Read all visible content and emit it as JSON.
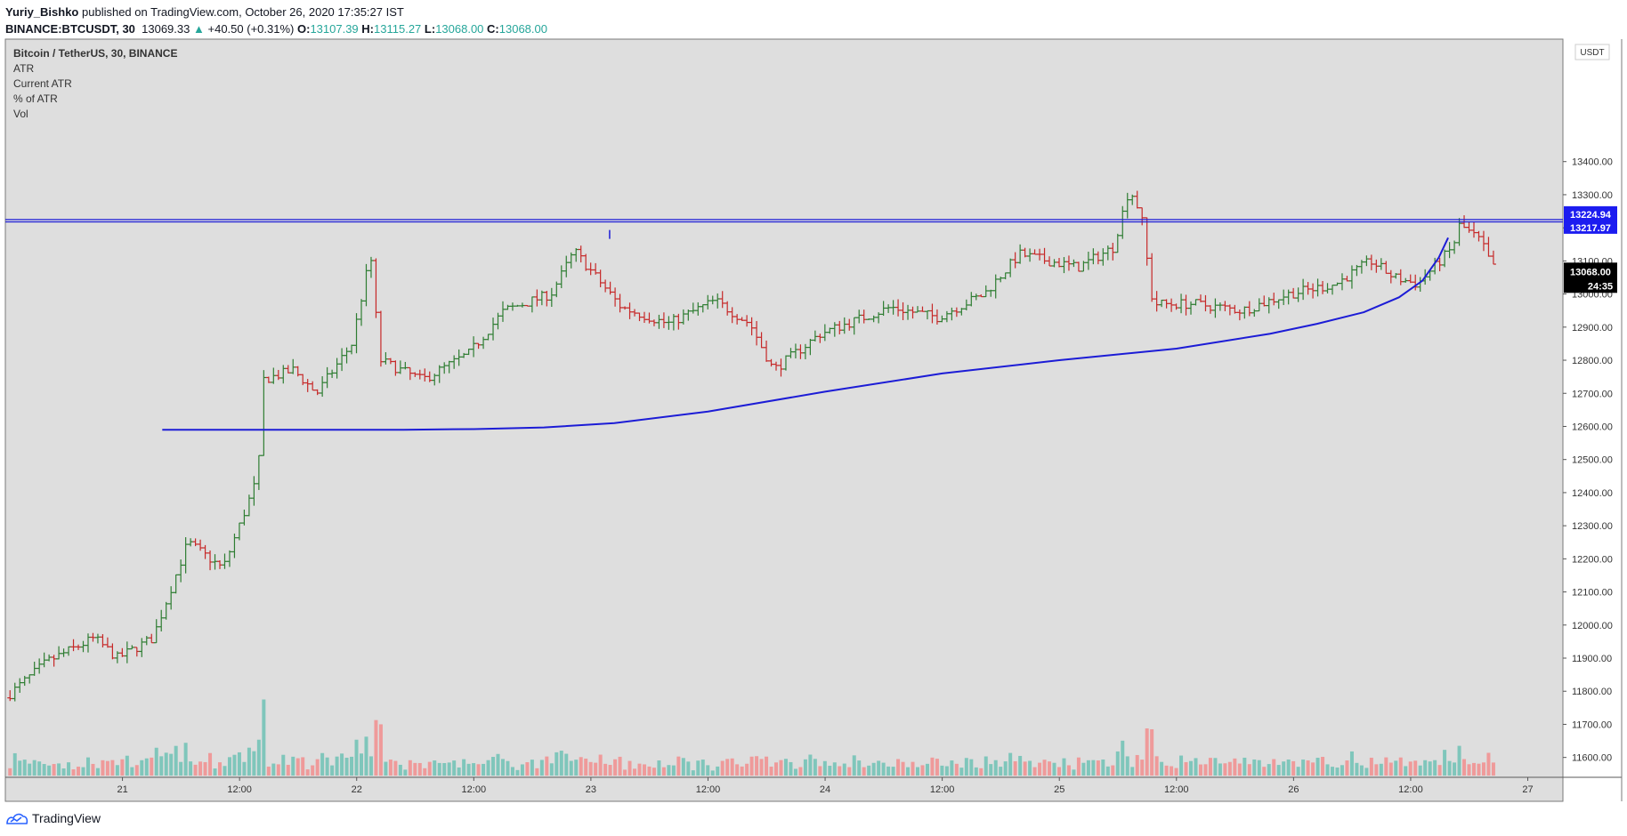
{
  "header": {
    "author": "Yuriy_Bishko",
    "published_text": "published on TradingView.com, October 26, 2020 17:35:27 IST",
    "symbol": "BINANCE:BTCUSDT, 30",
    "last_price": "13069.33",
    "change_arrow": "▲",
    "change": "+40.50 (+0.31%)",
    "o_label": "O:",
    "o_value": "13107.39",
    "h_label": "H:",
    "h_value": "13115.27",
    "l_label": "L:",
    "l_value": "13068.00",
    "c_label": "C:",
    "c_value": "13068.00"
  },
  "legend": [
    "Bitcoin / TetherUS, 30, BINANCE",
    "ATR",
    "Current ATR",
    "% of ATR",
    "Vol"
  ],
  "currency_label": "USDT",
  "price_tags": {
    "resistance_upper": "13224.94",
    "resistance_lower": "13217.97",
    "last": "13068.00",
    "countdown": "24:35"
  },
  "footer": {
    "brand": "TradingView"
  },
  "colors": {
    "background": "#ffffff",
    "plot_bg": "#dedede",
    "up": "#2e7d32",
    "down": "#c62828",
    "vol_up": "#7fc6bb",
    "vol_down": "#ef9a9a",
    "line": "#1c1cd6"
  },
  "chart_data": {
    "type": "candlestick",
    "x": {
      "range_days": [
        20.5,
        27.15
      ],
      "tick_labels": [
        {
          "day": 21,
          "label": "21"
        },
        {
          "day": 21.5,
          "label": "12:00"
        },
        {
          "day": 22,
          "label": "22"
        },
        {
          "day": 22.5,
          "label": "12:00"
        },
        {
          "day": 23,
          "label": "23"
        },
        {
          "day": 23.5,
          "label": "12:00"
        },
        {
          "day": 24,
          "label": "24"
        },
        {
          "day": 24.5,
          "label": "12:00"
        },
        {
          "day": 25,
          "label": "25"
        },
        {
          "day": 25.5,
          "label": "12:00"
        },
        {
          "day": 26,
          "label": "26"
        },
        {
          "day": 26.5,
          "label": "12:00"
        },
        {
          "day": 27,
          "label": "27"
        }
      ]
    },
    "y": {
      "ylim": [
        11540,
        13770
      ],
      "ticks": [
        11600,
        11700,
        11800,
        11900,
        12000,
        12100,
        12200,
        12300,
        12400,
        12500,
        12600,
        12700,
        12800,
        12900,
        13000,
        13100,
        13200,
        13300,
        13400
      ]
    },
    "price_anchors": [
      {
        "day": 20.52,
        "price": 11780
      },
      {
        "day": 20.7,
        "price": 11890
      },
      {
        "day": 20.9,
        "price": 11960
      },
      {
        "day": 21.0,
        "price": 11900
      },
      {
        "day": 21.15,
        "price": 11960
      },
      {
        "day": 21.3,
        "price": 12250
      },
      {
        "day": 21.45,
        "price": 12170
      },
      {
        "day": 21.6,
        "price": 12450
      },
      {
        "day": 21.62,
        "price": 12740
      },
      {
        "day": 21.75,
        "price": 12770
      },
      {
        "day": 21.85,
        "price": 12700
      },
      {
        "day": 22.0,
        "price": 12850
      },
      {
        "day": 22.08,
        "price": 13120
      },
      {
        "day": 22.12,
        "price": 12800
      },
      {
        "day": 22.3,
        "price": 12740
      },
      {
        "day": 22.5,
        "price": 12820
      },
      {
        "day": 22.65,
        "price": 12950
      },
      {
        "day": 22.85,
        "price": 13000
      },
      {
        "day": 22.95,
        "price": 13130
      },
      {
        "day": 23.15,
        "price": 12960
      },
      {
        "day": 23.35,
        "price": 12910
      },
      {
        "day": 23.55,
        "price": 12980
      },
      {
        "day": 23.7,
        "price": 12910
      },
      {
        "day": 23.8,
        "price": 12770
      },
      {
        "day": 24.0,
        "price": 12880
      },
      {
        "day": 24.3,
        "price": 12960
      },
      {
        "day": 24.5,
        "price": 12930
      },
      {
        "day": 24.7,
        "price": 13000
      },
      {
        "day": 24.85,
        "price": 13120
      },
      {
        "day": 25.1,
        "price": 13080
      },
      {
        "day": 25.25,
        "price": 13140
      },
      {
        "day": 25.32,
        "price": 13320
      },
      {
        "day": 25.37,
        "price": 13240
      },
      {
        "day": 25.42,
        "price": 12970
      },
      {
        "day": 25.6,
        "price": 12970
      },
      {
        "day": 25.8,
        "price": 12950
      },
      {
        "day": 26.0,
        "price": 13000
      },
      {
        "day": 26.2,
        "price": 13030
      },
      {
        "day": 26.35,
        "price": 13100
      },
      {
        "day": 26.45,
        "price": 13050
      },
      {
        "day": 26.55,
        "price": 13030
      },
      {
        "day": 26.7,
        "price": 13140
      },
      {
        "day": 26.73,
        "price": 13210
      },
      {
        "day": 26.82,
        "price": 13160
      },
      {
        "day": 26.87,
        "price": 13080
      }
    ],
    "volume_scale": {
      "baseline_price": 11545,
      "price_per_unit": 1
    },
    "resistance_band": [
      13217.97,
      13224.94
    ],
    "curve": [
      {
        "day": 21.17,
        "price": 12590
      },
      {
        "day": 21.55,
        "price": 12590
      },
      {
        "day": 21.9,
        "price": 12590
      },
      {
        "day": 22.2,
        "price": 12590
      },
      {
        "day": 22.5,
        "price": 12592
      },
      {
        "day": 22.8,
        "price": 12597
      },
      {
        "day": 23.1,
        "price": 12610
      },
      {
        "day": 23.5,
        "price": 12645
      },
      {
        "day": 24.0,
        "price": 12705
      },
      {
        "day": 24.5,
        "price": 12760
      },
      {
        "day": 25.0,
        "price": 12800
      },
      {
        "day": 25.5,
        "price": 12835
      },
      {
        "day": 25.9,
        "price": 12880
      },
      {
        "day": 26.1,
        "price": 12910
      },
      {
        "day": 26.3,
        "price": 12945
      },
      {
        "day": 26.45,
        "price": 12990
      },
      {
        "day": 26.55,
        "price": 13040
      },
      {
        "day": 26.62,
        "price": 13110
      },
      {
        "day": 26.66,
        "price": 13170
      }
    ],
    "marker": {
      "day": 23.08,
      "price": 13180
    }
  }
}
